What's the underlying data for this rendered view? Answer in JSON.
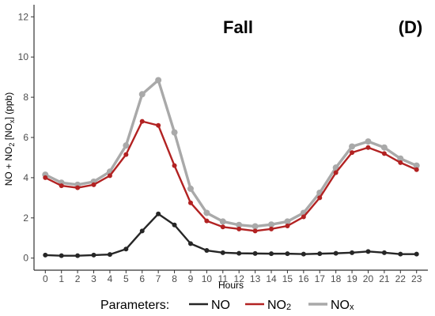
{
  "chart_data": {
    "type": "line",
    "title": "Fall",
    "panel_label": "(D)",
    "xlabel": "Hours",
    "ylabel_parts": [
      "NO + NO",
      "2",
      " [NO",
      "x",
      "] (ppb)"
    ],
    "x": [
      0,
      1,
      2,
      3,
      4,
      5,
      6,
      7,
      8,
      9,
      10,
      11,
      12,
      13,
      14,
      15,
      16,
      17,
      18,
      19,
      20,
      21,
      22,
      23
    ],
    "xlim": [
      -0.7,
      23.7
    ],
    "ylim": [
      -0.6,
      12.6
    ],
    "yticks": [
      0,
      2,
      4,
      6,
      8,
      10,
      12
    ],
    "grid": false,
    "legend_title": "Parameters:",
    "legend_position": "bottom",
    "series": [
      {
        "name": "NO",
        "legend_main": "NO",
        "legend_sub": "",
        "color": "#262626",
        "values": [
          0.15,
          0.12,
          0.12,
          0.15,
          0.18,
          0.45,
          1.35,
          2.2,
          1.65,
          0.72,
          0.38,
          0.27,
          0.24,
          0.23,
          0.22,
          0.22,
          0.2,
          0.22,
          0.24,
          0.27,
          0.33,
          0.27,
          0.2,
          0.2
        ]
      },
      {
        "name": "NO2",
        "legend_main": "NO",
        "legend_sub": "2",
        "color": "#b22222",
        "values": [
          4.0,
          3.6,
          3.5,
          3.65,
          4.1,
          5.15,
          6.8,
          6.6,
          4.6,
          2.75,
          1.85,
          1.55,
          1.45,
          1.35,
          1.45,
          1.6,
          2.05,
          3.0,
          4.25,
          5.25,
          5.5,
          5.2,
          4.75,
          4.4
        ]
      },
      {
        "name": "NOx",
        "legend_main": "NO",
        "legend_sub": "x",
        "color": "#a9a9a9",
        "values": [
          4.15,
          3.75,
          3.65,
          3.8,
          4.3,
          5.6,
          8.15,
          8.85,
          6.25,
          3.45,
          2.25,
          1.82,
          1.65,
          1.58,
          1.67,
          1.82,
          2.25,
          3.25,
          4.5,
          5.55,
          5.8,
          5.5,
          4.95,
          4.6
        ]
      }
    ]
  }
}
